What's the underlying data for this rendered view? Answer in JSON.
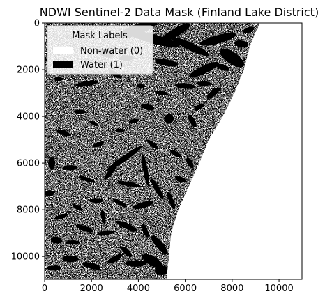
{
  "chart_data": {
    "type": "heatmap",
    "title": "NDWI Sentinel-2 Data Mask (Finland Lake District)",
    "xlabel": "",
    "ylabel": "",
    "x_ticks": [
      0,
      2000,
      4000,
      6000,
      8000,
      10000
    ],
    "y_ticks": [
      0,
      2000,
      4000,
      6000,
      8000,
      10000
    ],
    "xlim": [
      0,
      10980
    ],
    "ylim": [
      10980,
      0
    ],
    "y_inverted": true,
    "grid": false,
    "colormap": {
      "0": "#ffffff",
      "1": "#000000"
    },
    "legend": {
      "title": "Mask Labels",
      "placement": "top-left",
      "entries": [
        {
          "label": "Non-water (0)",
          "color": "#ffffff",
          "value": 0
        },
        {
          "label": "Water (1)",
          "color": "#000000",
          "value": 1
        }
      ]
    },
    "no_data_boundary": [
      [
        9200,
        0
      ],
      [
        9000,
        400
      ],
      [
        8750,
        1000
      ],
      [
        8500,
        2000
      ],
      [
        8100,
        3000
      ],
      [
        7600,
        4000
      ],
      [
        7000,
        5000
      ],
      [
        6600,
        6000
      ],
      [
        6150,
        7000
      ],
      [
        5700,
        8000
      ],
      [
        5400,
        9000
      ],
      [
        5300,
        10000
      ],
      [
        5200,
        10980
      ]
    ],
    "water_bodies": [
      [
        3900,
        300,
        900,
        220,
        -20
      ],
      [
        4700,
        700,
        1100,
        200,
        15
      ],
      [
        5600,
        400,
        700,
        180,
        -30
      ],
      [
        6200,
        1000,
        900,
        160,
        25
      ],
      [
        7400,
        700,
        800,
        180,
        -15
      ],
      [
        8000,
        1500,
        600,
        250,
        35
      ],
      [
        6800,
        2000,
        700,
        170,
        -25
      ],
      [
        5200,
        1700,
        500,
        140,
        10
      ],
      [
        3500,
        1500,
        300,
        120,
        0
      ],
      [
        2600,
        1300,
        350,
        150,
        20
      ],
      [
        1800,
        2600,
        500,
        110,
        -10
      ],
      [
        3000,
        2200,
        300,
        100,
        30
      ],
      [
        6000,
        2700,
        450,
        120,
        5
      ],
      [
        7200,
        3000,
        350,
        130,
        -40
      ],
      [
        4400,
        3600,
        300,
        120,
        15
      ],
      [
        5300,
        4100,
        200,
        200,
        0
      ],
      [
        6300,
        4200,
        300,
        120,
        60
      ],
      [
        1500,
        3800,
        250,
        90,
        0
      ],
      [
        800,
        4700,
        300,
        110,
        20
      ],
      [
        2300,
        5200,
        250,
        90,
        -20
      ],
      [
        3200,
        4600,
        200,
        80,
        0
      ],
      [
        600,
        2400,
        200,
        80,
        0
      ],
      [
        6600,
        3600,
        250,
        100,
        -30
      ],
      [
        4600,
        5200,
        300,
        90,
        40
      ],
      [
        5600,
        5600,
        280,
        100,
        30
      ],
      [
        6200,
        6000,
        250,
        120,
        60
      ],
      [
        3400,
        5800,
        900,
        120,
        -35
      ],
      [
        4300,
        6300,
        700,
        100,
        80
      ],
      [
        3600,
        6900,
        500,
        90,
        10
      ],
      [
        2800,
        6400,
        400,
        100,
        -50
      ],
      [
        1800,
        6700,
        350,
        90,
        20
      ],
      [
        1100,
        6200,
        300,
        110,
        0
      ],
      [
        4800,
        7100,
        500,
        110,
        60
      ],
      [
        5400,
        7600,
        400,
        100,
        70
      ],
      [
        4200,
        7800,
        450,
        130,
        -15
      ],
      [
        3200,
        7700,
        350,
        90,
        30
      ],
      [
        2200,
        7600,
        300,
        100,
        0
      ],
      [
        1400,
        7900,
        250,
        90,
        30
      ],
      [
        700,
        8300,
        300,
        100,
        -20
      ],
      [
        500,
        9300,
        250,
        150,
        10
      ],
      [
        1700,
        8800,
        400,
        110,
        20
      ],
      [
        2600,
        9000,
        380,
        100,
        -10
      ],
      [
        3500,
        8700,
        500,
        120,
        25
      ],
      [
        4300,
        8900,
        300,
        100,
        70
      ],
      [
        4900,
        9500,
        500,
        160,
        50
      ],
      [
        4600,
        10200,
        500,
        200,
        30
      ],
      [
        3900,
        10300,
        450,
        140,
        0
      ],
      [
        3000,
        10100,
        350,
        120,
        -30
      ],
      [
        2000,
        10400,
        400,
        130,
        15
      ],
      [
        1100,
        10100,
        350,
        140,
        0
      ],
      [
        400,
        10500,
        300,
        110,
        0
      ],
      [
        3500,
        9800,
        300,
        120,
        45
      ],
      [
        5000,
        10600,
        300,
        200,
        0
      ],
      [
        2500,
        8300,
        300,
        90,
        80
      ],
      [
        1200,
        9400,
        300,
        90,
        0
      ],
      [
        200,
        7300,
        200,
        140,
        0
      ],
      [
        300,
        6000,
        150,
        250,
        0
      ],
      [
        5800,
        6700,
        250,
        120,
        20
      ],
      [
        6800,
        2600,
        300,
        100,
        0
      ],
      [
        7600,
        1900,
        300,
        120,
        20
      ],
      [
        8400,
        900,
        300,
        150,
        10
      ],
      [
        8700,
        300,
        250,
        120,
        -20
      ],
      [
        2100,
        4300,
        200,
        80,
        30
      ],
      [
        3800,
        4200,
        220,
        90,
        -10
      ],
      [
        5000,
        3000,
        260,
        90,
        10
      ],
      [
        4100,
        2700,
        200,
        80,
        0
      ]
    ]
  }
}
